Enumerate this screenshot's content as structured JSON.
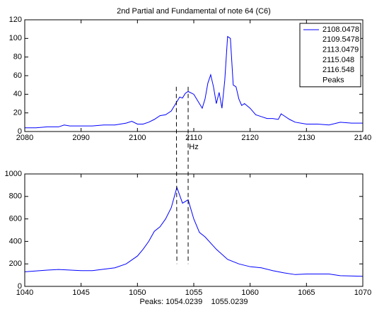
{
  "chart_data": [
    {
      "type": "line",
      "title": "2nd Partial and Fundamental of note 64 (C6)",
      "xlabel": "Hz",
      "xlim": [
        2080,
        2140
      ],
      "xticks": [
        2080,
        2090,
        2100,
        2110,
        2120,
        2130,
        2140
      ],
      "ylim": [
        0,
        120
      ],
      "yticks": [
        0,
        20,
        40,
        60,
        80,
        100,
        120
      ],
      "series": [
        {
          "name": "2108.0478",
          "color": "#0000ff",
          "x": [
            2080,
            2082,
            2084,
            2086,
            2087,
            2088,
            2090,
            2092,
            2094,
            2096,
            2098,
            2099,
            2100,
            2101,
            2102,
            2103,
            2104,
            2105,
            2106,
            2107,
            2107.5,
            2108,
            2108.5,
            2109,
            2110,
            2111,
            2111.5,
            2112,
            2112.5,
            2113,
            2113.5,
            2114,
            2114.5,
            2115,
            2115.5,
            2116,
            2116.5,
            2117,
            2117.5,
            2118,
            2118.5,
            2119,
            2120,
            2121,
            2122,
            2123,
            2124,
            2125,
            2125.5,
            2126,
            2127,
            2128,
            2130,
            2132,
            2134,
            2136,
            2138,
            2140
          ],
          "values": [
            4,
            4,
            5,
            5,
            7,
            6,
            6,
            6,
            7,
            7,
            9,
            11,
            8,
            8,
            10,
            13,
            17,
            18,
            22,
            32,
            37,
            36,
            41,
            43,
            40,
            30,
            25,
            35,
            52,
            61,
            48,
            30,
            42,
            25,
            55,
            102,
            100,
            50,
            48,
            35,
            28,
            30,
            25,
            18,
            16,
            14,
            14,
            13,
            19,
            17,
            13,
            10,
            8,
            8,
            7,
            10,
            9,
            9
          ]
        }
      ],
      "legend_labels": [
        "2109.5478",
        "2113.0479",
        "2115.048",
        "2116.548",
        "Peaks"
      ],
      "peak_x": [
        2106.9,
        2109.0
      ],
      "peak_top": 48
    },
    {
      "type": "line",
      "xlabel": "Peaks: 1054.0239    1055.0239",
      "xlim": [
        1040,
        1070
      ],
      "xticks": [
        1040,
        1045,
        1050,
        1055,
        1060,
        1065,
        1070
      ],
      "ylim": [
        0,
        1000
      ],
      "yticks": [
        0,
        200,
        400,
        600,
        800,
        1000
      ],
      "series": [
        {
          "color": "#0000ff",
          "x": [
            1040,
            1042,
            1043,
            1045,
            1046,
            1048,
            1049,
            1050,
            1050.5,
            1051,
            1051.5,
            1052,
            1052.5,
            1053,
            1053.5,
            1054,
            1054.5,
            1055,
            1055.5,
            1056,
            1057,
            1058,
            1059,
            1060,
            1061,
            1062,
            1063,
            1064,
            1065,
            1067,
            1068,
            1070
          ],
          "values": [
            130,
            145,
            150,
            140,
            140,
            165,
            200,
            270,
            330,
            400,
            490,
            530,
            600,
            700,
            880,
            740,
            770,
            600,
            480,
            440,
            330,
            240,
            200,
            175,
            165,
            140,
            120,
            105,
            110,
            110,
            95,
            90
          ]
        }
      ],
      "peak_x": [
        1053.5,
        1054.5
      ],
      "peak_bottom": 200
    }
  ]
}
